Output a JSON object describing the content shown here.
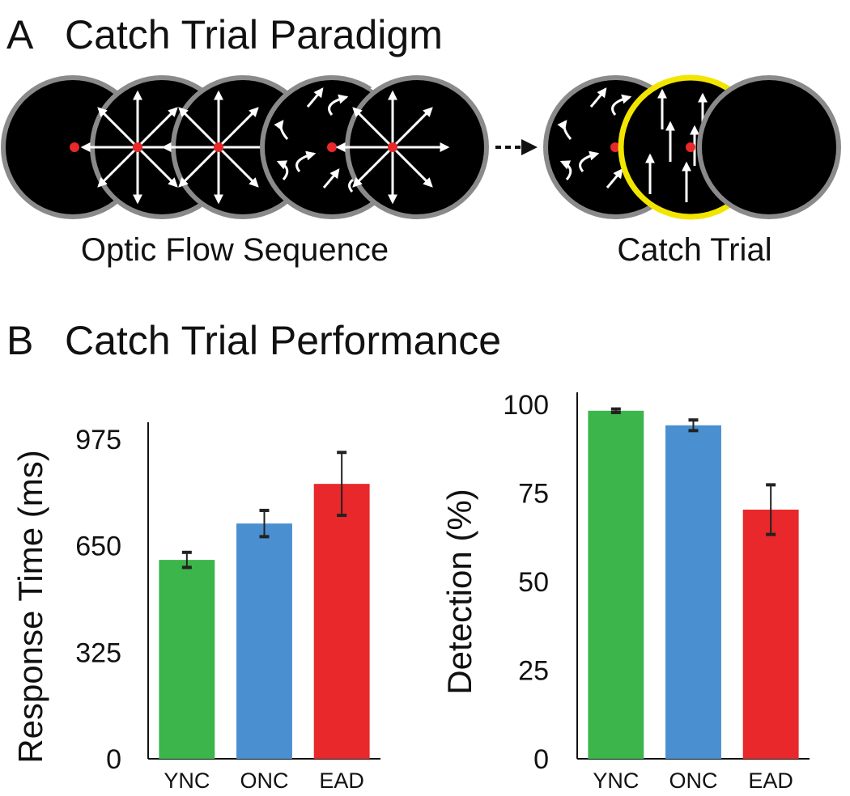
{
  "panel_a": {
    "label": "A",
    "title": "Catch Trial Paradigm",
    "captions": [
      "Optic Flow Sequence",
      "Catch Trial"
    ]
  },
  "panel_b": {
    "label": "B",
    "title": "Catch Trial Performance"
  },
  "chart_data": [
    {
      "type": "bar",
      "y_label": "Response Time (ms)",
      "categories": [
        "YNC",
        "ONC",
        "EAD"
      ],
      "values": [
        607,
        718,
        839
      ],
      "errors": [
        23,
        40,
        96
      ],
      "colors": [
        "#3cb54a",
        "#4a8fd0",
        "#e8282a"
      ],
      "ylim": [
        0,
        1027
      ],
      "yticks": [
        0,
        325,
        650,
        975
      ],
      "grid": false
    },
    {
      "type": "bar",
      "y_label": "Detection (%)",
      "categories": [
        "YNC",
        "ONC",
        "EAD"
      ],
      "values": [
        98.2,
        94.1,
        70.3
      ],
      "errors": [
        0.5,
        1.5,
        7
      ],
      "colors": [
        "#3cb54a",
        "#4a8fd0",
        "#e8282a"
      ],
      "ylim": [
        0,
        103.4
      ],
      "yticks": [
        0,
        25,
        50,
        75,
        100
      ],
      "grid": false
    }
  ]
}
